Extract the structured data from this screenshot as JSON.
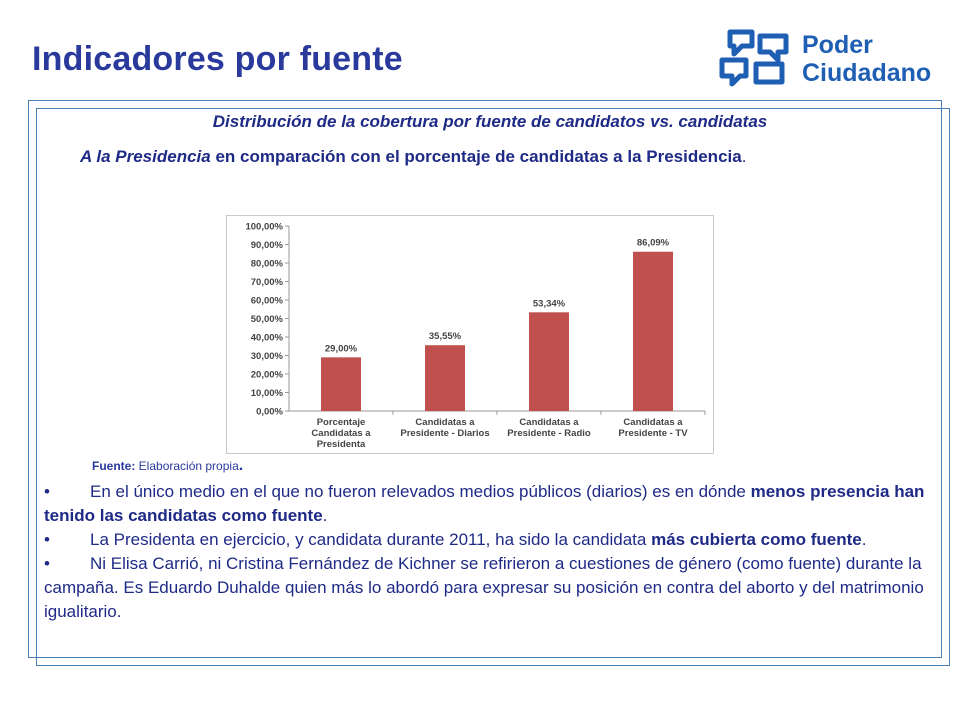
{
  "header": {
    "title": "Indicadores por fuente",
    "logo_line1": "Poder",
    "logo_line2": "Ciudadano"
  },
  "subtitle": {
    "line1": "Distribución de la cobertura por fuente de candidatos vs. candidatas",
    "line2_italic": "A la Presidencia",
    "line2_rest": " en comparación  con el porcentaje de  candidatas a la Presidencia",
    "line2_end": "."
  },
  "chart_data": {
    "type": "bar",
    "categories": [
      [
        "Porcentaje",
        "Candidatas a",
        "Presidenta"
      ],
      [
        "Candidatas a",
        "Presidente - Diarios"
      ],
      [
        "Candidatas a",
        "Presidente - Radio"
      ],
      [
        "Candidatas a",
        "Presidente - TV"
      ]
    ],
    "values": [
      29.0,
      35.55,
      53.34,
      86.09
    ],
    "data_labels": [
      "29,00%",
      "35,55%",
      "53,34%",
      "86,09%"
    ],
    "y_ticks": [
      "0,00%",
      "10,00%",
      "20,00%",
      "30,00%",
      "40,00%",
      "50,00%",
      "60,00%",
      "70,00%",
      "80,00%",
      "90,00%",
      "100,00%"
    ],
    "ylim": [
      0,
      100
    ],
    "grid": false,
    "bar_color": "#c0504d",
    "title": "",
    "xlabel": "",
    "ylabel": ""
  },
  "source": {
    "label": "Fuente:",
    "text": " Elaboración propia",
    "end": "."
  },
  "bullets": [
    {
      "dot": "•",
      "pre": "En el único medio en el que no fueron relevados medios públicos (diarios) es en dónde ",
      "bold": "menos presencia han tenido las candidatas como fuente",
      "post": "."
    },
    {
      "dot": "•",
      "pre": "La Presidenta en ejercicio, y candidata durante 2011, ha sido la candidata ",
      "bold": "más cubierta como fuente",
      "post": "."
    },
    {
      "dot": "•",
      "pre": "Ni Elisa Carrió, ni Cristina Fernández de Kichner se refirieron a cuestiones de género (como fuente) durante la campaña. Es Eduardo Duhalde quien más lo abordó para  expresar su posición en contra del aborto y del matrimonio igualitario.",
      "bold": "",
      "post": ""
    }
  ],
  "colors": {
    "title": "#2a3a9c",
    "text": "#1f2a86",
    "logo": "#1e5fb3",
    "frame": "#4a7fb6"
  }
}
